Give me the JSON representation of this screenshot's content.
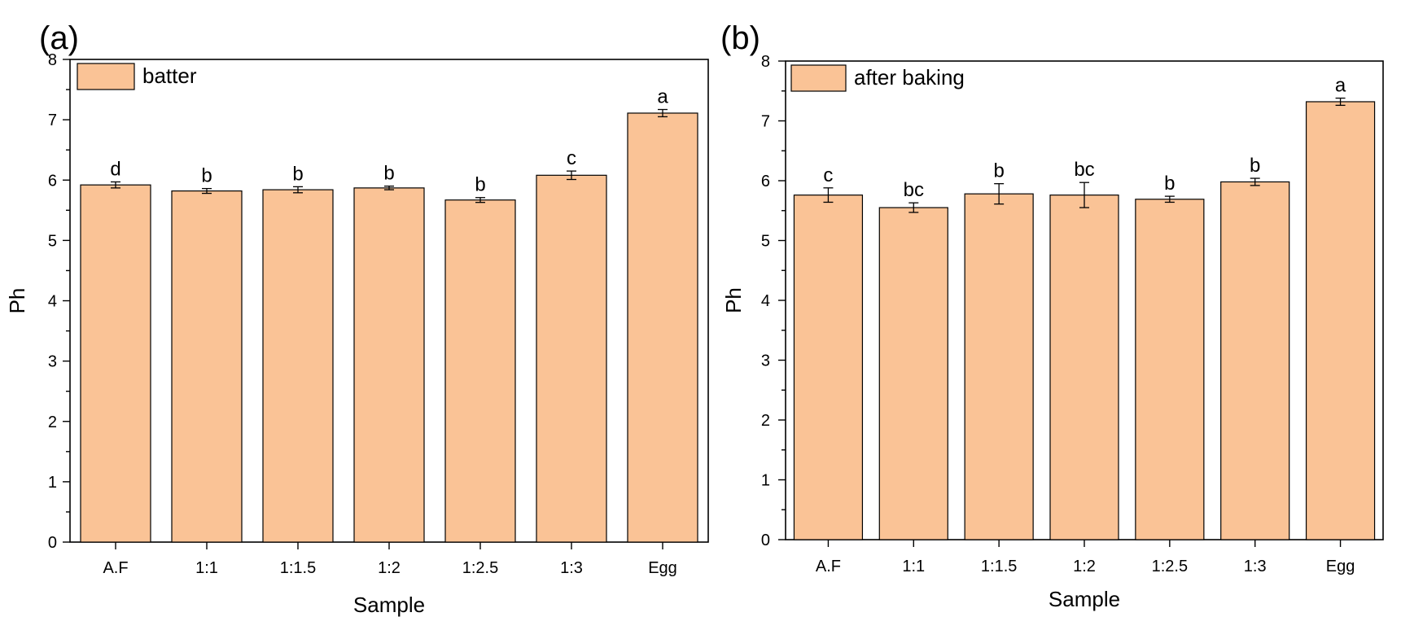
{
  "chart_data": [
    {
      "type": "bar",
      "panel_label": "(a)",
      "legend": "batter",
      "legend_position": "top-left",
      "xlabel": "Sample",
      "ylabel": "Ph",
      "ylim": [
        0,
        8
      ],
      "yticks": [
        "0",
        "1",
        "2",
        "3",
        "4",
        "5",
        "6",
        "7",
        "8"
      ],
      "categories": [
        "A.F",
        "1:1",
        "1:1.5",
        "1:2",
        "1:2.5",
        "1:3",
        "Egg"
      ],
      "values": [
        5.92,
        5.82,
        5.84,
        5.87,
        5.67,
        6.08,
        7.11
      ],
      "errors": [
        0.05,
        0.04,
        0.05,
        0.03,
        0.04,
        0.07,
        0.06
      ],
      "letters": [
        "d",
        "b",
        "b",
        "b",
        "b",
        "c",
        "a"
      ],
      "color": "#fac396"
    },
    {
      "type": "bar",
      "panel_label": "(b)",
      "legend": "after baking",
      "legend_position": "top-left",
      "xlabel": "Sample",
      "ylabel": "Ph",
      "ylim": [
        0,
        8
      ],
      "yticks": [
        "0",
        "1",
        "2",
        "3",
        "4",
        "5",
        "6",
        "7",
        "8"
      ],
      "categories": [
        "A.F",
        "1:1",
        "1:1.5",
        "1:2",
        "1:2.5",
        "1:3",
        "Egg"
      ],
      "values": [
        5.76,
        5.55,
        5.78,
        5.76,
        5.69,
        5.98,
        7.32
      ],
      "errors": [
        0.12,
        0.08,
        0.17,
        0.21,
        0.05,
        0.06,
        0.06
      ],
      "letters": [
        "c",
        "bc",
        "b",
        "bc",
        "b",
        "b",
        "a"
      ],
      "color": "#fac396"
    }
  ]
}
